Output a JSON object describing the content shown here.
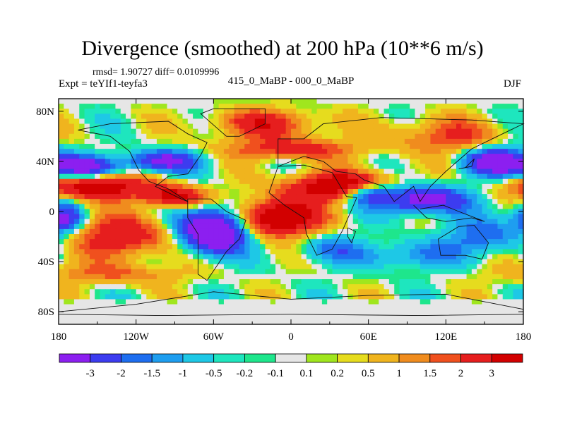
{
  "chart_data": {
    "type": "heatmap",
    "title": "Divergence (smoothed) at 200 hPa (10**6 m/s)",
    "stats": "rmsd= 1.90727 diff= 0.0109996",
    "experiment": "Expt = teYIf1-teyfa3",
    "difference": "415_0_MaBP - 000_0_MaBP",
    "season": "DJF",
    "xlim": [
      -180,
      180
    ],
    "ylim": [
      -90,
      90
    ],
    "x_ticks": [
      {
        "value": -180,
        "label": "180"
      },
      {
        "value": -120,
        "label": "120W"
      },
      {
        "value": -60,
        "label": "60W"
      },
      {
        "value": 0,
        "label": "0"
      },
      {
        "value": 60,
        "label": "60E"
      },
      {
        "value": 120,
        "label": "120E"
      },
      {
        "value": 180,
        "label": "180"
      }
    ],
    "y_ticks": [
      {
        "value": 80,
        "label": "80N"
      },
      {
        "value": 40,
        "label": "40N"
      },
      {
        "value": 0,
        "label": "0"
      },
      {
        "value": -40,
        "label": "40S"
      },
      {
        "value": -80,
        "label": "80S"
      }
    ],
    "colorbar": {
      "labels": [
        "-3",
        "-2",
        "-1.5",
        "-1",
        "-0.5",
        "-0.2",
        "-0.1",
        "0.1",
        "0.2",
        "0.5",
        "1",
        "1.5",
        "2",
        "3"
      ],
      "colors": [
        "#8c1ff0",
        "#3c3cf0",
        "#1e6ef0",
        "#1e9ef0",
        "#1ec8e6",
        "#1ee6be",
        "#1ee68c",
        "#e6e6e6",
        "#a0e61e",
        "#e6dc1e",
        "#f0b41e",
        "#f08c1e",
        "#f0501e",
        "#e61e1e",
        "#d20000"
      ]
    }
  }
}
